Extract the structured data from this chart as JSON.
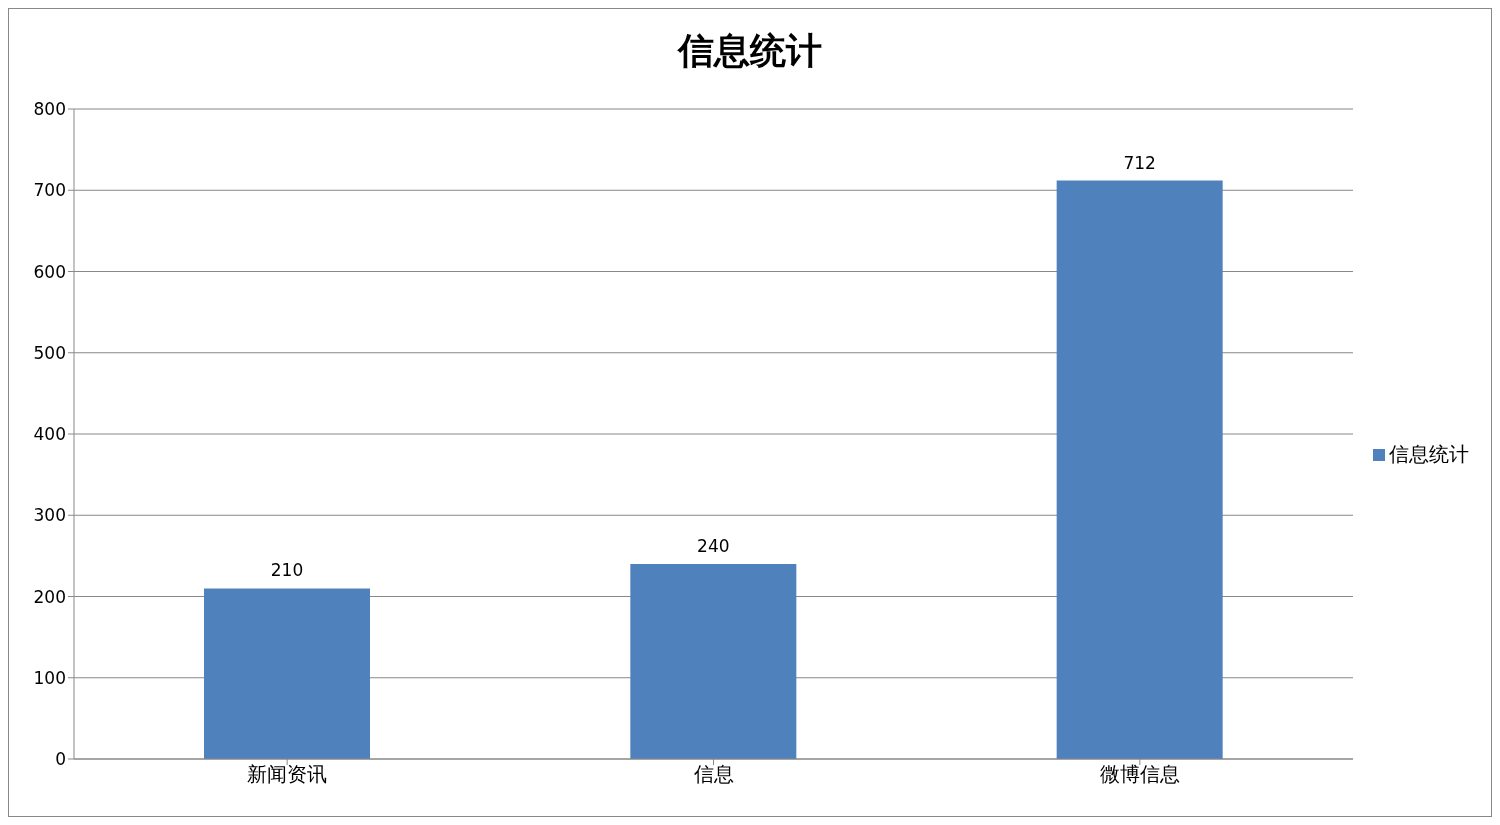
{
  "chart_data": {
    "type": "bar",
    "title": "信息统计",
    "categories": [
      "新闻资讯",
      "信息",
      "微博信息"
    ],
    "series": [
      {
        "name": "信息统计",
        "color": "#4f81bd",
        "values": [
          210,
          240,
          712
        ]
      }
    ],
    "ylim": [
      0,
      800
    ],
    "yticks": [
      0,
      100,
      200,
      300,
      400,
      500,
      600,
      700,
      800
    ],
    "grid": "y",
    "legend": "right",
    "data_labels": true
  }
}
